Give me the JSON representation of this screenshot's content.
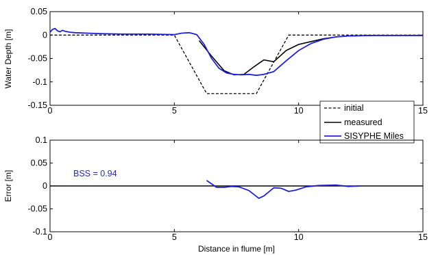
{
  "chart_data": [
    {
      "type": "line",
      "title": "",
      "xlabel": "",
      "ylabel": "Water Depth [m]",
      "xlim": [
        0,
        15
      ],
      "ylim": [
        -0.15,
        0.05
      ],
      "xticks": [
        0,
        5,
        10,
        15
      ],
      "xtick_labels": [
        "0",
        "5",
        "10",
        "15"
      ],
      "yticks": [
        0.05,
        0,
        -0.05,
        -0.1,
        -0.15
      ],
      "ytick_labels": [
        "0.05",
        "0",
        "-0.05",
        "-0.1",
        "-0.15"
      ],
      "grid": false,
      "legend": {
        "position": "bottom-right",
        "entries": [
          "initial",
          "measured",
          "SISYPHE Miles"
        ]
      },
      "series": [
        {
          "name": "initial",
          "color": "#000000",
          "style": "dashed",
          "x": [
            0,
            5,
            6.3,
            8.3,
            9.6,
            15
          ],
          "y": [
            0,
            0,
            -0.125,
            -0.125,
            0,
            0
          ]
        },
        {
          "name": "measured",
          "color": "#000000",
          "style": "solid",
          "x": [
            6.0,
            6.5,
            7.0,
            7.4,
            7.8,
            8.2,
            8.6,
            9.0,
            9.5,
            10.0,
            10.5,
            11.0,
            11.5,
            12.0,
            13.0,
            14.0,
            15.0
          ],
          "y": [
            -0.012,
            -0.045,
            -0.076,
            -0.085,
            -0.084,
            -0.068,
            -0.053,
            -0.057,
            -0.033,
            -0.02,
            -0.014,
            -0.008,
            -0.004,
            -0.002,
            -0.001,
            -0.001,
            -0.001
          ]
        },
        {
          "name": "SISYPHE Miles",
          "color": "#1f1fdf",
          "style": "solid",
          "x": [
            0,
            0.1,
            0.2,
            0.3,
            0.4,
            0.5,
            0.6,
            0.8,
            1.0,
            2.0,
            3.0,
            4.0,
            5.0,
            5.3,
            5.6,
            5.9,
            6.2,
            6.5,
            6.8,
            7.1,
            7.4,
            7.7,
            8.0,
            8.3,
            8.6,
            9.0,
            9.5,
            10.0,
            10.5,
            11.0,
            11.5,
            12.0,
            13.0,
            14.0,
            15.0
          ],
          "y": [
            0.006,
            0.012,
            0.014,
            0.009,
            0.007,
            0.01,
            0.008,
            0.006,
            0.005,
            0.003,
            0.002,
            0.002,
            0.001,
            0.004,
            0.005,
            0.001,
            -0.02,
            -0.05,
            -0.071,
            -0.081,
            -0.084,
            -0.085,
            -0.084,
            -0.086,
            -0.084,
            -0.078,
            -0.055,
            -0.033,
            -0.018,
            -0.009,
            -0.004,
            -0.002,
            -0.001,
            -0.001,
            -0.001
          ]
        }
      ]
    },
    {
      "type": "line",
      "title": "",
      "xlabel": "Distance in flume [m]",
      "ylabel": "Error [m]",
      "xlim": [
        0,
        15
      ],
      "ylim": [
        -0.1,
        0.1
      ],
      "xticks": [
        0,
        5,
        10,
        15
      ],
      "xtick_labels": [
        "0",
        "5",
        "10",
        "15"
      ],
      "yticks": [
        0.1,
        0.05,
        0,
        -0.05,
        -0.1
      ],
      "ytick_labels": [
        "0.1",
        "0.05",
        "0",
        "-0.05",
        "-0.1"
      ],
      "grid": false,
      "annotation": "BSS = 0.94",
      "annotation_color": "#1f1fdf",
      "reference_line": {
        "y": 0,
        "color": "#000000"
      },
      "series": [
        {
          "name": "",
          "color": "#1f1fdf",
          "style": "solid",
          "x": [
            6.3,
            6.7,
            7.0,
            7.3,
            7.6,
            8.0,
            8.4,
            8.6,
            9.0,
            9.3,
            9.6,
            9.9,
            10.3,
            10.8,
            11.5,
            12.0,
            12.5
          ],
          "y": [
            0.012,
            -0.003,
            -0.003,
            -0.001,
            -0.002,
            -0.01,
            -0.027,
            -0.022,
            -0.004,
            -0.005,
            -0.012,
            -0.009,
            -0.002,
            0.001,
            0.002,
            -0.001,
            0.0
          ]
        }
      ]
    }
  ]
}
